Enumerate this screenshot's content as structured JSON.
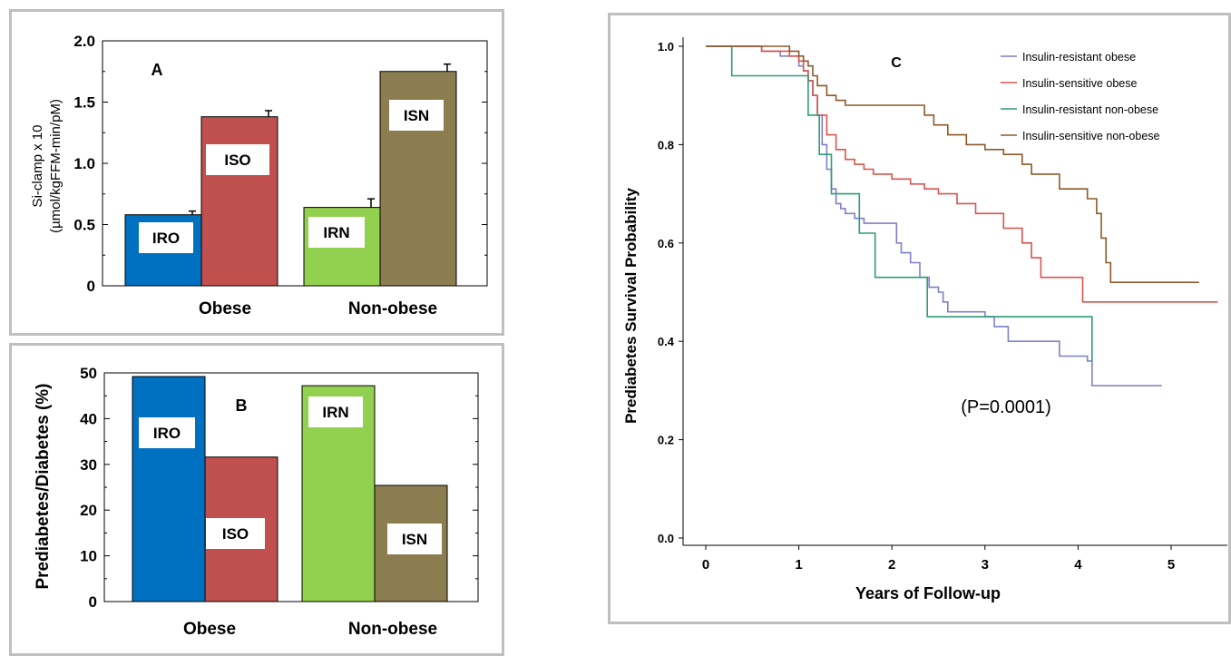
{
  "colors": {
    "IRO": "#0070c0",
    "ISO": "#c0504d",
    "IRN": "#92d050",
    "ISN": "#8b7d4f",
    "line_iro": "#7f7fc8",
    "line_iso": "#d9534f",
    "line_irn": "#2e9a7a",
    "line_isn": "#8b5a2b"
  },
  "chart_data": [
    {
      "type": "bar",
      "panel_label": "A",
      "ylabel_line1": "Si-clamp x 10",
      "ylabel_line2": "(µmol/kgFFM-min/pM)",
      "ylim": [
        0,
        2.0
      ],
      "yticks": [
        "0",
        "0.5",
        "1.0",
        "1.5",
        "2.0"
      ],
      "ytick_values": [
        0,
        0.5,
        1.0,
        1.5,
        2.0
      ],
      "groups": [
        "Obese",
        "Non-obese"
      ],
      "bars": [
        {
          "label": "IRO",
          "group": "Obese",
          "value": 0.58,
          "error": 0.03,
          "color_key": "IRO"
        },
        {
          "label": "ISO",
          "group": "Obese",
          "value": 1.38,
          "error": 0.05,
          "color_key": "ISO"
        },
        {
          "label": "IRN",
          "group": "Non-obese",
          "value": 0.64,
          "error": 0.07,
          "color_key": "IRN"
        },
        {
          "label": "ISN",
          "group": "Non-obese",
          "value": 1.75,
          "error": 0.06,
          "color_key": "ISN"
        }
      ]
    },
    {
      "type": "bar",
      "panel_label": "B",
      "ylabel": "Prediabetes/Diabetes (%)",
      "ylim": [
        0,
        50
      ],
      "yticks": [
        "0",
        "10",
        "20",
        "30",
        "40",
        "50"
      ],
      "ytick_values": [
        0,
        10,
        20,
        30,
        40,
        50
      ],
      "groups": [
        "Obese",
        "Non-obese"
      ],
      "bars": [
        {
          "label": "IRO",
          "group": "Obese",
          "value": 49.2,
          "color_key": "IRO"
        },
        {
          "label": "ISO",
          "group": "Obese",
          "value": 31.6,
          "color_key": "ISO"
        },
        {
          "label": "IRN",
          "group": "Non-obese",
          "value": 47.2,
          "color_key": "IRN"
        },
        {
          "label": "ISN",
          "group": "Non-obese",
          "value": 25.4,
          "color_key": "ISN"
        }
      ]
    },
    {
      "type": "line",
      "panel_label": "C",
      "xlabel": "Years of Follow-up",
      "ylabel": "Prediabetes Survival Probability",
      "xlim": [
        0,
        5.5
      ],
      "ylim": [
        0,
        1.0
      ],
      "xticks": [
        "0",
        "1",
        "2",
        "3",
        "4",
        "5"
      ],
      "xtick_values": [
        0,
        1,
        2,
        3,
        4,
        5
      ],
      "yticks": [
        "0.0",
        "0.2",
        "0.4",
        "0.6",
        "0.8",
        "1.0"
      ],
      "ytick_values": [
        0,
        0.2,
        0.4,
        0.6,
        0.8,
        1.0
      ],
      "legend_position": "top-right",
      "annotation": "(P=0.0001)",
      "series": [
        {
          "name": "Insulin-resistant obese",
          "color_key": "line_iro",
          "x": [
            0,
            0.6,
            0.8,
            1.0,
            1.05,
            1.1,
            1.15,
            1.2,
            1.25,
            1.3,
            1.35,
            1.4,
            1.45,
            1.5,
            1.6,
            1.7,
            1.8,
            2.05,
            2.1,
            2.2,
            2.3,
            2.4,
            2.5,
            2.55,
            2.6,
            3.0,
            3.1,
            3.25,
            3.8,
            4.1,
            4.15,
            4.9
          ],
          "y": [
            1.0,
            0.99,
            0.98,
            0.96,
            0.95,
            0.93,
            0.9,
            0.86,
            0.8,
            0.75,
            0.71,
            0.68,
            0.67,
            0.66,
            0.65,
            0.64,
            0.64,
            0.6,
            0.58,
            0.56,
            0.53,
            0.51,
            0.5,
            0.48,
            0.46,
            0.45,
            0.43,
            0.4,
            0.37,
            0.36,
            0.31,
            0.31
          ]
        },
        {
          "name": "Insulin-sensitive obese",
          "color_key": "line_iso",
          "x": [
            0,
            0.6,
            0.9,
            1.0,
            1.05,
            1.1,
            1.15,
            1.2,
            1.3,
            1.4,
            1.5,
            1.6,
            1.7,
            1.8,
            1.9,
            2.0,
            2.2,
            2.35,
            2.5,
            2.7,
            2.9,
            3.2,
            3.4,
            3.5,
            3.6,
            4.05,
            5.5
          ],
          "y": [
            1.0,
            0.99,
            0.98,
            0.97,
            0.95,
            0.93,
            0.9,
            0.86,
            0.82,
            0.79,
            0.77,
            0.76,
            0.75,
            0.74,
            0.74,
            0.73,
            0.72,
            0.71,
            0.7,
            0.68,
            0.66,
            0.63,
            0.6,
            0.57,
            0.53,
            0.48,
            0.48
          ]
        },
        {
          "name": "Insulin-resistant non-obese",
          "color_key": "line_irn",
          "x": [
            0,
            0.28,
            1.02,
            1.1,
            1.22,
            1.35,
            1.65,
            1.82,
            2.38,
            4.15
          ],
          "y": [
            1.0,
            0.94,
            0.94,
            0.86,
            0.78,
            0.7,
            0.62,
            0.53,
            0.45,
            0.36
          ]
        },
        {
          "name": "Insulin-sensitive non-obese",
          "color_key": "line_isn",
          "x": [
            0,
            0.6,
            0.9,
            1.0,
            1.05,
            1.1,
            1.15,
            1.2,
            1.3,
            1.4,
            1.5,
            1.6,
            1.7,
            2.35,
            2.45,
            2.6,
            2.8,
            3.0,
            3.2,
            3.4,
            3.5,
            3.8,
            4.1,
            4.2,
            4.25,
            4.3,
            4.35,
            5.3
          ],
          "y": [
            1.0,
            1.0,
            0.99,
            0.98,
            0.97,
            0.96,
            0.94,
            0.92,
            0.9,
            0.89,
            0.88,
            0.88,
            0.88,
            0.86,
            0.84,
            0.82,
            0.8,
            0.79,
            0.78,
            0.76,
            0.74,
            0.71,
            0.69,
            0.66,
            0.61,
            0.56,
            0.52,
            0.52
          ]
        }
      ]
    }
  ]
}
